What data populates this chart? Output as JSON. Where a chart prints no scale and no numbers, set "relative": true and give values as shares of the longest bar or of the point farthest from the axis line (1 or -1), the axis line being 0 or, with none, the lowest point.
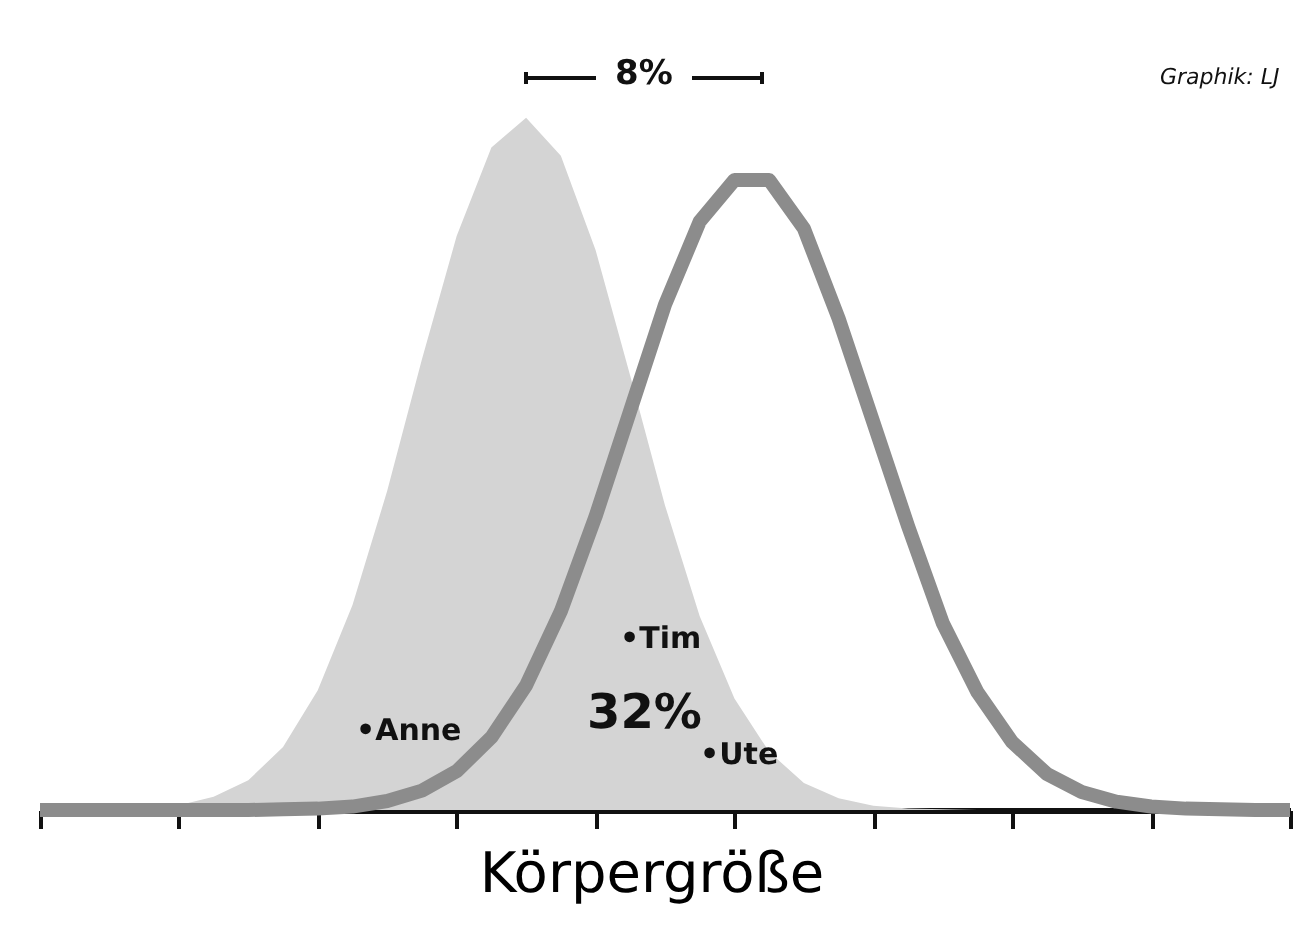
{
  "chart_data": {
    "type": "area",
    "relative": true,
    "xlabel": "Körpergröße",
    "tick_labels": false,
    "categories": [
      null,
      null,
      null,
      null,
      null,
      null,
      null,
      null,
      null,
      null,
      null,
      null,
      null,
      null,
      null,
      null,
      null,
      null,
      null,
      null,
      null,
      null,
      null,
      null,
      null,
      null,
      null,
      null,
      null,
      null,
      null,
      null,
      null,
      null,
      null,
      null,
      null
    ],
    "series": [
      {
        "color": "#d4d4d4",
        "values": [
          0,
          0,
          0.001,
          0.003,
          0.007,
          0.019,
          0.043,
          0.091,
          0.173,
          0.296,
          0.461,
          0.651,
          0.829,
          0.957,
          1,
          0.945,
          0.809,
          0.627,
          0.44,
          0.28,
          0.161,
          0.084,
          0.039,
          0.017,
          0.006,
          0.002,
          0.001,
          0,
          0,
          0,
          0,
          0,
          0,
          0,
          0,
          0,
          0
        ]
      },
      {
        "type": "line",
        "color": "#8c8c8c",
        "values": [
          0,
          0,
          0,
          0,
          0,
          0,
          0,
          0.001,
          0.002,
          0.005,
          0.013,
          0.028,
          0.056,
          0.105,
          0.18,
          0.287,
          0.424,
          0.577,
          0.73,
          0.85,
          0.91,
          0.91,
          0.84,
          0.71,
          0.56,
          0.41,
          0.27,
          0.17,
          0.098,
          0.052,
          0.026,
          0.012,
          0.005,
          0.002,
          0.001,
          0,
          0
        ]
      }
    ],
    "annotations": [
      "8%",
      "•Tim",
      "32%",
      "•Anne",
      "•Ute",
      "Graphik: LJ"
    ]
  }
}
